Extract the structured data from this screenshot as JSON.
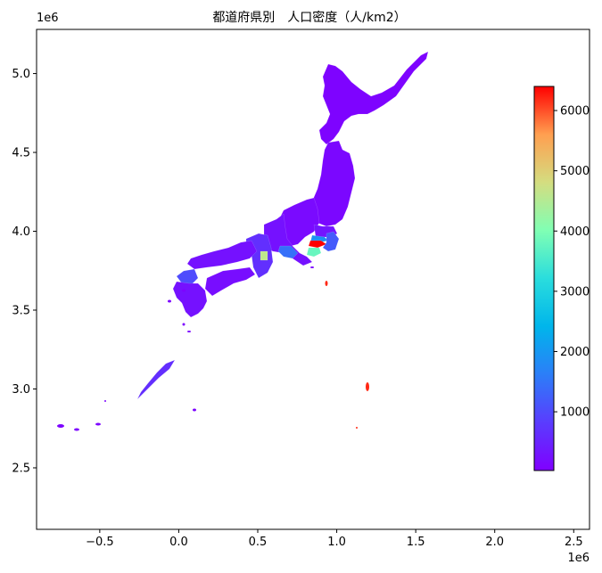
{
  "title": "都道府県別　人口密度（人/km2）",
  "axes": {
    "x_ticks": [
      "−0.5",
      "0.0",
      "0.5",
      "1.0",
      "1.5",
      "2.0",
      "2.5"
    ],
    "x_tick_values": [
      -500000,
      0,
      500000,
      1000000,
      1500000,
      2000000,
      2500000
    ],
    "y_ticks": [
      "2.5",
      "3.0",
      "3.5",
      "4.0",
      "4.5",
      "5.0"
    ],
    "y_tick_values": [
      2500000,
      3000000,
      3500000,
      4000000,
      4500000,
      5000000
    ],
    "x_exponent": "1e6",
    "y_exponent": "1e6",
    "xlim": [
      -900000,
      2600000
    ],
    "ylim": [
      2110000,
      5280000
    ]
  },
  "colorbar": {
    "colormap": "rainbow",
    "range": [
      25,
      6400
    ],
    "ticks": [
      "1000",
      "2000",
      "3000",
      "4000",
      "5000",
      "6000"
    ],
    "tick_values": [
      1000,
      2000,
      3000,
      4000,
      5000,
      6000
    ]
  },
  "map": {
    "subject": "Japan prefectures",
    "regions": [
      {
        "name": "Hokkaido",
        "density": 60
      },
      {
        "name": "Tohoku",
        "density": 120
      },
      {
        "name": "Niigata/Nagano",
        "density": 160
      },
      {
        "name": "Kanto-north",
        "density": 300
      },
      {
        "name": "Tokyo",
        "density": 6400
      },
      {
        "name": "Kanagawa",
        "density": 3800
      },
      {
        "name": "Saitama",
        "density": 1900
      },
      {
        "name": "Chiba",
        "density": 1200
      },
      {
        "name": "Aichi",
        "density": 1450
      },
      {
        "name": "Osaka",
        "density": 4600
      },
      {
        "name": "Chubu",
        "density": 250
      },
      {
        "name": "Kansai",
        "density": 650
      },
      {
        "name": "Chugoku",
        "density": 250
      },
      {
        "name": "Shikoku",
        "density": 200
      },
      {
        "name": "Fukuoka",
        "density": 1020
      },
      {
        "name": "Kyushu",
        "density": 250
      },
      {
        "name": "Okinawa",
        "density": 640
      }
    ]
  }
}
